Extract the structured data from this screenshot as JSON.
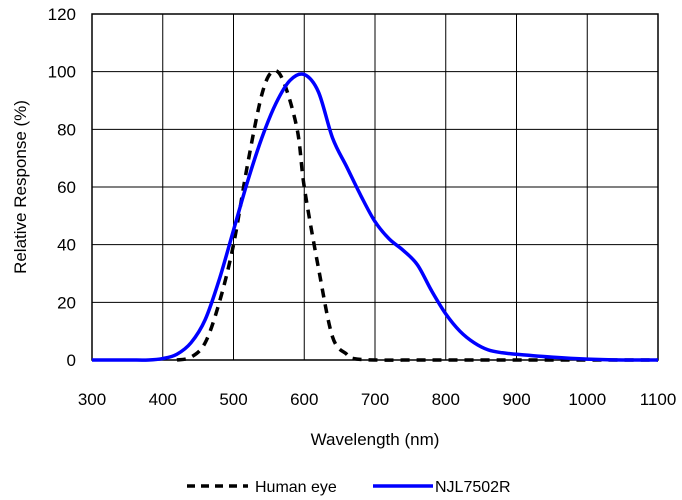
{
  "chart_data": {
    "type": "line",
    "title": "",
    "xlabel": "Wavelength (nm)",
    "ylabel": "Relative Response (%)",
    "xlim": [
      300,
      1100
    ],
    "ylim": [
      0,
      120
    ],
    "xticks": [
      300,
      400,
      500,
      600,
      700,
      800,
      900,
      1000,
      1100
    ],
    "yticks": [
      0,
      20,
      40,
      60,
      80,
      100,
      120
    ],
    "x_tick_labels": [
      "300",
      "400",
      "500",
      "600",
      "700",
      "800",
      "900",
      "1000",
      "1100"
    ],
    "y_tick_labels": [
      "0",
      "20",
      "40",
      "60",
      "80",
      "100",
      "120"
    ],
    "grid": true,
    "legend_position": "bottom",
    "series": [
      {
        "name": "Human eye",
        "color": "#000000",
        "style": "dashed",
        "x": [
          420,
          440,
          460,
          480,
          500,
          520,
          540,
          555,
          570,
          590,
          600,
          620,
          640,
          660,
          670,
          700,
          760,
          820,
          900,
          960,
          1000,
          1100
        ],
        "y": [
          0,
          1,
          6,
          20,
          40,
          68,
          92,
          100,
          97,
          80,
          60,
          32,
          8,
          2,
          0.5,
          0,
          0,
          0,
          0,
          0,
          0,
          0
        ]
      },
      {
        "name": "NJL7502R",
        "color": "#0000FF",
        "style": "solid",
        "x": [
          300,
          350,
          380,
          400,
          420,
          440,
          460,
          480,
          500,
          520,
          540,
          560,
          580,
          600,
          620,
          640,
          660,
          680,
          700,
          720,
          740,
          760,
          780,
          800,
          820,
          840,
          860,
          880,
          900,
          950,
          1000,
          1050,
          1100
        ],
        "y": [
          0,
          0,
          0,
          0.5,
          2,
          6,
          14,
          28,
          45,
          62,
          77,
          89,
          97,
          99,
          93,
          77,
          67,
          57,
          48,
          42,
          38,
          33,
          24,
          16,
          10,
          6,
          3.5,
          2.5,
          2,
          1,
          0.3,
          0,
          0
        ]
      }
    ]
  }
}
